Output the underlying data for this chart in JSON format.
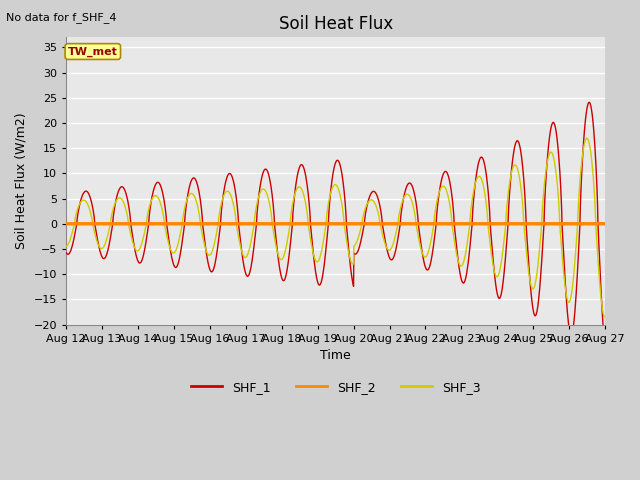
{
  "title": "Soil Heat Flux",
  "ylabel": "Soil Heat Flux (W/m2)",
  "xlabel": "Time",
  "note": "No data for f_SHF_4",
  "box_label": "TW_met",
  "ylim": [
    -20,
    37
  ],
  "yticks": [
    -20,
    -15,
    -10,
    -5,
    0,
    5,
    10,
    15,
    20,
    25,
    30,
    35
  ],
  "xlim": [
    12,
    27
  ],
  "xtick_positions": [
    12,
    13,
    14,
    15,
    16,
    17,
    18,
    19,
    20,
    21,
    22,
    23,
    24,
    25,
    26,
    27
  ],
  "xtick_labels": [
    "Aug 12",
    "Aug 13",
    "Aug 14",
    "Aug 15",
    "Aug 16",
    "Aug 17",
    "Aug 18",
    "Aug 19",
    "Aug 20",
    "Aug 21",
    "Aug 22",
    "Aug 23",
    "Aug 24",
    "Aug 25",
    "Aug 26",
    "Aug 27"
  ],
  "color_SHF1": "#cc0000",
  "color_SHF2": "#ff8800",
  "color_SHF3": "#cccc00",
  "legend_labels": [
    "SHF_1",
    "SHF_2",
    "SHF_3"
  ],
  "fig_bg_color": "#d0d0d0",
  "plot_bg_color": "#e8e8e8",
  "grid_color": "#ffffff",
  "title_fontsize": 12,
  "axis_label_fontsize": 9,
  "tick_fontsize": 8,
  "note_fontsize": 8
}
